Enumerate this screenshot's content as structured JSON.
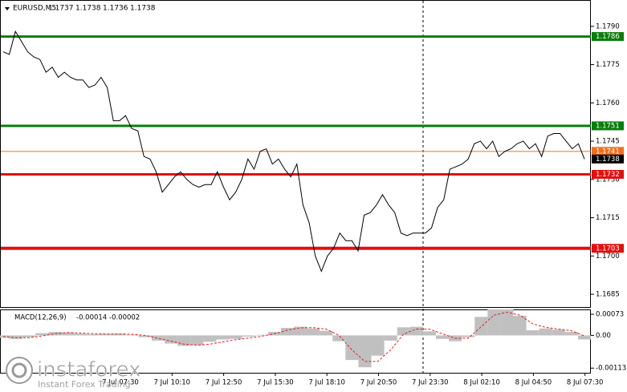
{
  "chart_data": [
    {
      "type": "line",
      "symbol": "EURUSD,M5",
      "ohlc": [
        1.1737,
        1.1738,
        1.1736,
        1.1738
      ],
      "color": "#000000",
      "values": [
        1.178,
        1.1779,
        1.1788,
        1.1784,
        1.178,
        1.1778,
        1.1777,
        1.1772,
        1.1774,
        1.177,
        1.1772,
        1.177,
        1.1769,
        1.1769,
        1.1766,
        1.1767,
        1.177,
        1.1766,
        1.1753,
        1.1753,
        1.1755,
        1.175,
        1.1749,
        1.1739,
        1.1738,
        1.1733,
        1.1725,
        1.1728,
        1.1731,
        1.1733,
        1.173,
        1.1728,
        1.1727,
        1.1728,
        1.1728,
        1.1733,
        1.1727,
        1.1722,
        1.1725,
        1.173,
        1.1738,
        1.1734,
        1.1741,
        1.1742,
        1.1736,
        1.1738,
        1.1734,
        1.1731,
        1.1736,
        1.172,
        1.1713,
        1.17,
        1.1694,
        1.17,
        1.1703,
        1.1709,
        1.1706,
        1.1706,
        1.1702,
        1.1716,
        1.1717,
        1.172,
        1.1724,
        1.172,
        1.1717,
        1.1709,
        1.1708,
        1.1709,
        1.1709,
        1.1709,
        1.1711,
        1.1719,
        1.1722,
        1.1734,
        1.1735,
        1.1736,
        1.1738,
        1.1744,
        1.1745,
        1.1742,
        1.1745,
        1.1739,
        1.1741,
        1.1742,
        1.1744,
        1.1745,
        1.1742,
        1.1744,
        1.1739,
        1.1747,
        1.1748,
        1.1748,
        1.1745,
        1.1742,
        1.1744,
        1.1738
      ],
      "ylim": [
        1.168,
        1.18
      ],
      "yticks": [
        {
          "value": 1.179,
          "label": "1.1790"
        },
        1.1775,
        {
          "value": 1.176,
          "label": "1.1760"
        },
        1.1745,
        {
          "value": 1.173,
          "label": "1.1730"
        },
        1.1715,
        {
          "value": 1.17,
          "label": "1.1700"
        },
        1.1685
      ],
      "levels": [
        {
          "value": 1.1786,
          "color": "#0a7d0a"
        },
        {
          "value": 1.1751,
          "color": "#0a7d0a"
        },
        {
          "value": 1.1741,
          "color": "#f07020"
        },
        {
          "value": 1.1732,
          "color": "#e01010"
        },
        {
          "value": 1.1703,
          "color": "#e01010"
        }
      ],
      "xtick_labels": [
        "7 Jul 07:30",
        "7 Jul 10:10",
        "7 Jul 12:50",
        "7 Jul 15:30",
        "7 Jul 18:10",
        "7 Jul 20:50",
        "7 Jul 23:30",
        "8 Jul 02:10",
        "8 Jul 04:50",
        "8 Jul 07:30"
      ]
    },
    {
      "type": "macd",
      "title": "MACD(12,26,9)",
      "series": [
        {
          "name": "histogram",
          "color": "#c0c0c0",
          "values": [
            -8e-05,
            -0.00012,
            -6e-05,
            8e-05,
            0.00012,
            0.0001,
            6e-05,
            4e-05,
            5e-05,
            6e-05,
            2e-05,
            -6e-05,
            -0.00018,
            -0.00028,
            -0.00036,
            -0.00034,
            -0.00022,
            -0.00014,
            -0.00012,
            -4e-05,
            2e-05,
            0.00012,
            0.00026,
            0.0003,
            0.00024,
            0.00016,
            -0.0002,
            -0.00085,
            -0.0011,
            -0.0007,
            -0.00018,
            0.00028,
            0.0003,
            0.00014,
            -0.00012,
            -0.0002,
            -6e-05,
            0.00064,
            0.0009,
            0.0009,
            0.00068,
            0.00018,
            0.00024,
            0.0002,
            0.00012,
            -0.00014
          ]
        },
        {
          "name": "signal",
          "color": "#e02020",
          "values": [
            -4e-05,
            -8e-05,
            -8e-05,
            -2e-05,
            6e-05,
            0.0001,
            8e-05,
            6e-05,
            5e-05,
            5e-05,
            4e-05,
            0,
            -0.0001,
            -0.0002,
            -0.0003,
            -0.00034,
            -0.0003,
            -0.00022,
            -0.00015,
            -9e-05,
            -3e-05,
            6e-05,
            0.00018,
            0.00026,
            0.00027,
            0.00022,
            0,
            -0.0005,
            -0.0009,
            -0.0009,
            -0.0005,
            5e-05,
            0.00022,
            0.00022,
            6e-05,
            -0.0001,
            -0.0001,
            0.0003,
            0.0007,
            0.0008,
            0.0007,
            0.0004,
            0.00028,
            0.00022,
            0.00016,
            -2e-05
          ]
        }
      ],
      "ylim": [
        -0.00129,
        0.00087
      ],
      "yticks": [
        0.00073,
        {
          "value": 0,
          "label": "0.00"
        },
        -0.00113
      ]
    }
  ],
  "watermark": {
    "brand": "instaforex",
    "tagline": "Instant Forex Trading"
  }
}
